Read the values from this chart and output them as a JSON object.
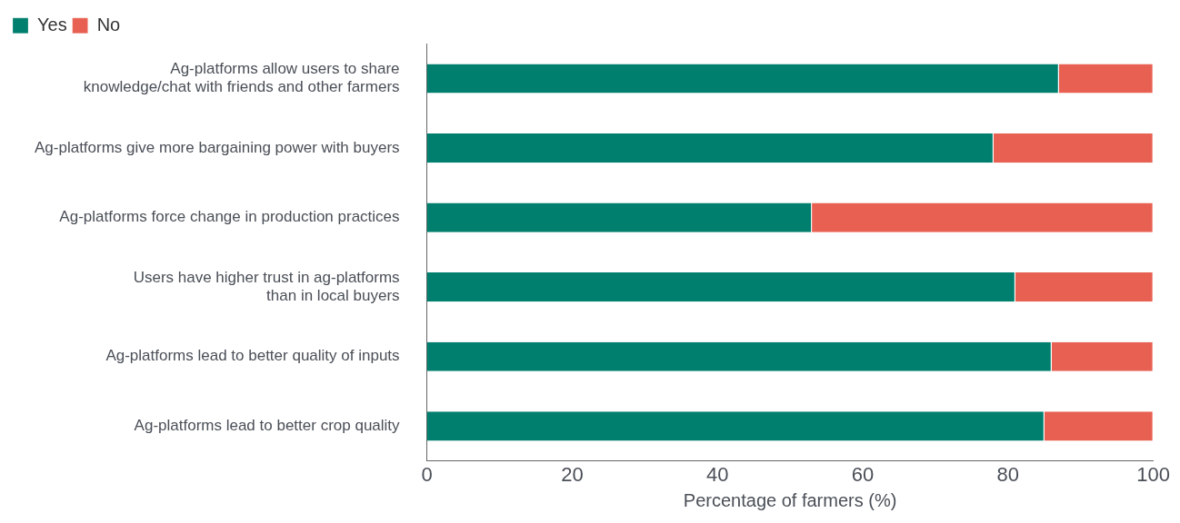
{
  "chart_data": {
    "type": "bar",
    "orientation": "horizontal",
    "stacked": true,
    "categories": [
      "Ag-platforms allow users to share\nknowledge/chat with friends and other farmers",
      "Ag-platforms give more bargaining power with buyers",
      "Ag-platforms force change in production practices",
      "Users have higher trust in ag-platforms\nthan in local buyers",
      "Ag-platforms lead to better quality of inputs",
      "Ag-platforms lead to better crop quality"
    ],
    "series": [
      {
        "name": "Yes",
        "color": "#007f6e",
        "values": [
          87,
          78,
          53,
          81,
          86,
          85
        ]
      },
      {
        "name": "No",
        "color": "#e86052",
        "values": [
          13,
          22,
          47,
          19,
          14,
          15
        ]
      }
    ],
    "xlabel": "Percentage of farmers (%)",
    "xlim": [
      0,
      100
    ],
    "xticks": [
      0,
      20,
      40,
      60,
      80,
      100
    ],
    "grid": false,
    "legend": "top left"
  }
}
